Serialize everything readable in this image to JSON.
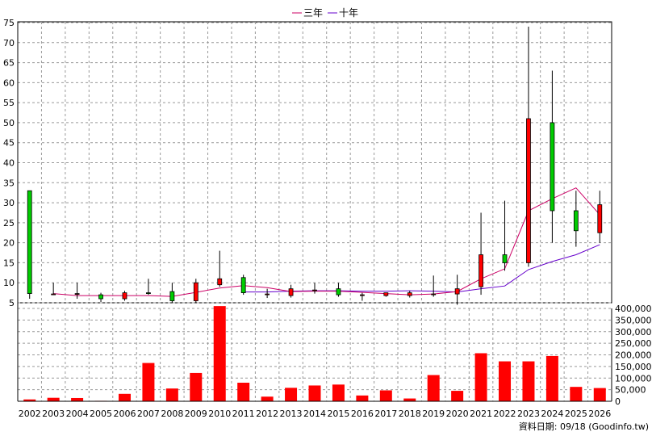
{
  "chart_data": {
    "type": "candlestick-volume",
    "legend": [
      {
        "name": "三年",
        "color": "#cc0066"
      },
      {
        "name": "十年",
        "color": "#6600cc"
      }
    ],
    "years": [
      "2002",
      "2003",
      "2004",
      "2005",
      "2006",
      "2007",
      "2008",
      "2009",
      "2010",
      "2011",
      "2012",
      "2013",
      "2014",
      "2015",
      "2016",
      "2017",
      "2018",
      "2019",
      "2020",
      "2021",
      "2022",
      "2023",
      "2024",
      "2025",
      "2026"
    ],
    "candles": [
      {
        "open": 7.3,
        "close": 33,
        "high": 33,
        "low": 6
      },
      {
        "open": 7.2,
        "close": 7.0,
        "high": 10,
        "low": 7
      },
      {
        "open": 7.3,
        "close": 7.2,
        "high": 10,
        "low": 6
      },
      {
        "open": 6.0,
        "close": 7.0,
        "high": 7.5,
        "low": 5.2
      },
      {
        "open": 7.5,
        "close": 6.0,
        "high": 8,
        "low": 5.5
      },
      {
        "open": 7.5,
        "close": 7.5,
        "high": 11,
        "low": 7
      },
      {
        "open": 5.5,
        "close": 7.8,
        "high": 10,
        "low": 5
      },
      {
        "open": 10,
        "close": 5.5,
        "high": 11,
        "low": 5
      },
      {
        "open": 11,
        "close": 9.5,
        "high": 18,
        "low": 9
      },
      {
        "open": 7.5,
        "close": 11.3,
        "high": 12,
        "low": 7
      },
      {
        "open": 7.2,
        "close": 7.0,
        "high": 8.5,
        "low": 6.2
      },
      {
        "open": 8.5,
        "close": 6.8,
        "high": 9.5,
        "low": 6.3
      },
      {
        "open": 8.2,
        "close": 8.0,
        "high": 10,
        "low": 7.3
      },
      {
        "open": 7.0,
        "close": 8.5,
        "high": 10,
        "low": 6.5
      },
      {
        "open": 7.0,
        "close": 6.9,
        "high": 7.5,
        "low": 5.5
      },
      {
        "open": 7.5,
        "close": 6.8,
        "high": 7.5,
        "low": 6.5
      },
      {
        "open": 7.5,
        "close": 6.8,
        "high": 8,
        "low": 6.3
      },
      {
        "open": 7.2,
        "close": 7.0,
        "high": 11.8,
        "low": 6.5
      },
      {
        "open": 8.5,
        "close": 7.2,
        "high": 12,
        "low": 4.5
      },
      {
        "open": 17,
        "close": 9.0,
        "high": 27.5,
        "low": 7
      },
      {
        "open": 15,
        "close": 17,
        "high": 30.5,
        "low": 13
      },
      {
        "open": 51,
        "close": 15,
        "high": 74,
        "low": 14
      },
      {
        "open": 28,
        "close": 50,
        "high": 63,
        "low": 20
      },
      {
        "open": 23,
        "close": 28,
        "high": 33,
        "low": 19
      },
      {
        "open": 29.5,
        "close": 22.5,
        "high": 33,
        "low": 20
      }
    ],
    "ma3": [
      null,
      null,
      7.3,
      6.8,
      6.8,
      6.8,
      6.8,
      6.6,
      7.6,
      8.7,
      9.3,
      8.8,
      7.8,
      7.9,
      7.9,
      7.6,
      7.3,
      7.0,
      7.2,
      7.8,
      11.0,
      13.5,
      28.0,
      31.0,
      33.7,
      27.0
    ],
    "ma10": [
      null,
      null,
      null,
      null,
      null,
      null,
      null,
      null,
      null,
      null,
      7.7,
      7.7,
      7.9,
      8.0,
      8.0,
      7.9,
      7.9,
      8.0,
      7.9,
      7.7,
      8.5,
      9.2,
      13.3,
      15.3,
      17.0,
      19.5
    ],
    "ma_x": [
      1,
      1.3,
      2,
      3,
      4,
      5,
      6,
      7,
      8,
      9,
      10,
      11,
      12,
      13,
      14,
      15,
      16,
      17,
      18,
      19,
      20,
      21,
      22,
      23,
      24,
      25
    ],
    "volume": [
      8000,
      15000,
      14000,
      2000,
      32000,
      165000,
      55000,
      122000,
      410000,
      80000,
      20000,
      58000,
      68000,
      72000,
      25000,
      47000,
      12000,
      113000,
      45000,
      207000,
      172000,
      172000,
      195000,
      62000,
      57000
    ],
    "price_ticks": [
      5,
      10,
      15,
      20,
      25,
      30,
      35,
      40,
      45,
      50,
      55,
      60,
      65,
      70,
      75
    ],
    "volume_ticks": [
      "0",
      "50,000",
      "100,000",
      "150,000",
      "200,000",
      "250,000",
      "300,000",
      "350,000",
      "400,000"
    ],
    "price_range": [
      5,
      75
    ],
    "volume_range": [
      0,
      400000
    ],
    "colors": {
      "up": "#ff0000",
      "down": "#00cc00",
      "volume": "#ff0000",
      "grid": "#999999"
    }
  },
  "footer": "資料日期: 09/18 (Goodinfo.tw)"
}
